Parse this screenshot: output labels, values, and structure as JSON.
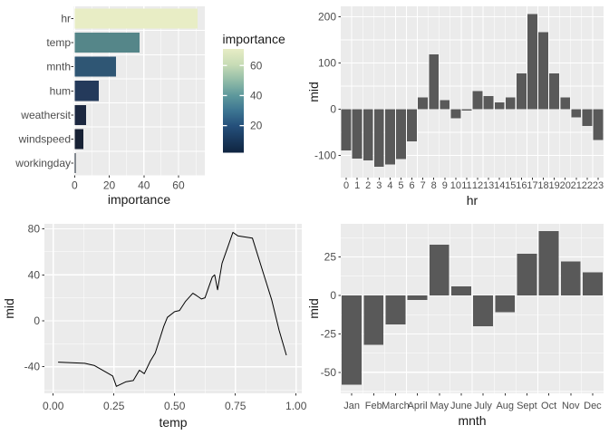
{
  "colors": {
    "page_bg": "#ffffff",
    "panel_bg": "#ebebeb",
    "grid": "#ffffff",
    "bar": "#595959",
    "tick": "#333333",
    "tick_text": "#4d4d4d",
    "title_text": "#1a1a1a",
    "line": "#000000"
  },
  "chart_data": [
    {
      "id": "importance",
      "type": "bar",
      "orientation": "horizontal",
      "xlabel": "importance",
      "ylabel": "",
      "categories": [
        "hr",
        "temp",
        "mnth",
        "hum",
        "weathersit",
        "windspeed",
        "workingday"
      ],
      "values": [
        71,
        37.5,
        24,
        14,
        6.5,
        5,
        0.5
      ],
      "bar_colors": [
        "#e8edc5",
        "#558689",
        "#2f5674",
        "#243a5b",
        "#1c2840",
        "#182235",
        "#15202f"
      ],
      "x_ticks": [
        0,
        20,
        40,
        60
      ],
      "x_tick_labels": [
        "0",
        "20",
        "40",
        "60"
      ],
      "xlim": [
        -0.7,
        75.2
      ],
      "grid": true,
      "legend": {
        "title": "importance",
        "position": "right",
        "ticks": [
          60,
          40,
          20
        ],
        "tick_labels": [
          "60",
          "40",
          "20"
        ],
        "domain": [
          2,
          71
        ],
        "gradient_stops": [
          [
            "0%",
            "#0f2440"
          ],
          [
            "26%",
            "#25507b"
          ],
          [
            "40%",
            "#3c7491"
          ],
          [
            "55%",
            "#5d989c"
          ],
          [
            "70%",
            "#93bda8"
          ],
          [
            "85%",
            "#c8dcb6"
          ],
          [
            "100%",
            "#e7edc5"
          ]
        ]
      }
    },
    {
      "id": "mid-by-hr",
      "type": "bar",
      "orientation": "vertical",
      "xlabel": "hr",
      "ylabel": "mid",
      "categories": [
        "0",
        "1",
        "2",
        "3",
        "4",
        "5",
        "6",
        "7",
        "8",
        "9",
        "10",
        "11",
        "12",
        "13",
        "14",
        "15",
        "16",
        "17",
        "18",
        "19",
        "20",
        "21",
        "22",
        "23"
      ],
      "values": [
        -89,
        -107,
        -111,
        -124,
        -120,
        -108,
        -70,
        25,
        119,
        20,
        -20,
        -3,
        39,
        28,
        15,
        25,
        77,
        206,
        167,
        77,
        25,
        -18,
        -36,
        -67
      ],
      "y_ticks": [
        200,
        100,
        0,
        -100
      ],
      "y_tick_labels": [
        "200",
        "100",
        "0",
        "-100"
      ],
      "ylim": [
        -148,
        222.5
      ],
      "grid": true
    },
    {
      "id": "mid-by-temp",
      "type": "line",
      "xlabel": "temp",
      "ylabel": "mid",
      "x": [
        0.02,
        0.13,
        0.17,
        0.22,
        0.245,
        0.26,
        0.3,
        0.33,
        0.355,
        0.375,
        0.4,
        0.42,
        0.44,
        0.455,
        0.47,
        0.5,
        0.52,
        0.545,
        0.575,
        0.59,
        0.61,
        0.625,
        0.655,
        0.665,
        0.677,
        0.695,
        0.72,
        0.74,
        0.76,
        0.79,
        0.82,
        0.86,
        0.9,
        0.93,
        0.96
      ],
      "y": [
        -36,
        -37,
        -39,
        -45,
        -48,
        -57,
        -53,
        -52,
        -43,
        -46,
        -35,
        -28,
        -15,
        -5,
        3,
        8,
        9,
        17,
        24,
        22,
        19,
        20,
        38,
        40,
        27,
        50,
        65,
        77,
        74,
        73,
        72,
        45,
        18,
        -8,
        -30
      ],
      "x_ticks": [
        0,
        0.25,
        0.5,
        0.75,
        1
      ],
      "x_tick_labels": [
        "0.00",
        "0.25",
        "0.50",
        "0.75",
        "1.00"
      ],
      "y_ticks": [
        80,
        40,
        0,
        -40
      ],
      "y_tick_labels": [
        "80",
        "40",
        "0",
        "-40"
      ],
      "xlim": [
        -0.0362,
        1.0235
      ],
      "ylim": [
        -63.1,
        84.4
      ],
      "grid": true
    },
    {
      "id": "mid-by-mnth",
      "type": "bar",
      "orientation": "vertical",
      "xlabel": "mnth",
      "ylabel": "mid",
      "categories": [
        "Jan",
        "Feb",
        "March",
        "April",
        "May",
        "June",
        "July",
        "Aug",
        "Sept",
        "Oct",
        "Nov",
        "Dec"
      ],
      "values": [
        -58,
        -32,
        -19,
        -3,
        33,
        6,
        -20,
        -11,
        27,
        42,
        22,
        15
      ],
      "y_ticks": [
        25,
        0,
        -25,
        -50
      ],
      "y_tick_labels": [
        "25",
        "0",
        "-25",
        "-50"
      ],
      "ylim": [
        -63.7,
        46.6
      ],
      "grid": true
    }
  ]
}
